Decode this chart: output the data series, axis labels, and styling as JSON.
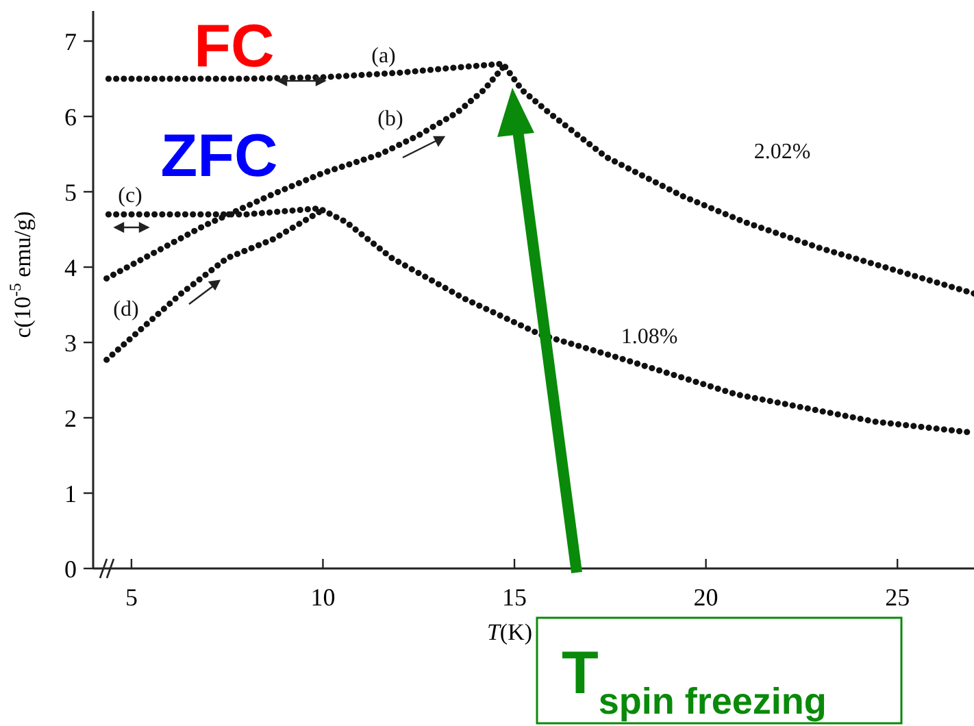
{
  "chart_data": {
    "type": "line",
    "xlabel": "T(K)",
    "ylabel": "c(10$^{-5}$ emu/g)",
    "xlim": [
      4,
      27
    ],
    "xticks": [
      5,
      10,
      15,
      20,
      25
    ],
    "ylim": [
      0,
      7.4
    ],
    "yticks": [
      0,
      1,
      2,
      3,
      4,
      5,
      6,
      7
    ],
    "grid": false,
    "line_style": "dotted",
    "marker": "none",
    "series": [
      {
        "color": "#111111",
        "x": [
          4.4,
          6,
          8,
          10,
          12,
          13.5,
          14.7,
          15.2,
          15.9,
          17.4,
          19.4,
          21,
          23,
          25,
          27
        ],
        "values": [
          6.5,
          6.5,
          6.5,
          6.52,
          6.58,
          6.65,
          6.7,
          6.35,
          6.05,
          5.46,
          4.94,
          4.6,
          4.25,
          3.95,
          3.65
        ]
      },
      {
        "color": "#111111",
        "x": [
          4.35,
          6.9,
          8.7,
          10,
          11.5,
          12.5,
          13.5,
          14.2,
          14.7
        ],
        "values": [
          3.85,
          4.55,
          4.97,
          5.25,
          5.5,
          5.75,
          6.05,
          6.35,
          6.65
        ]
      },
      {
        "color": "#111111",
        "x": [
          4.4,
          6,
          8,
          9.9,
          10.6,
          11.8,
          13.7,
          15.7,
          17.7,
          20.8,
          24.4,
          27
        ],
        "values": [
          4.7,
          4.7,
          4.7,
          4.78,
          4.6,
          4.12,
          3.58,
          3.1,
          2.8,
          2.31,
          1.95,
          1.8
        ]
      },
      {
        "color": "#111111",
        "x": [
          4.35,
          6.3,
          7.5,
          8.7,
          9.9
        ],
        "values": [
          2.77,
          3.65,
          4.12,
          4.37,
          4.73
        ]
      }
    ],
    "annotations": [
      "FC",
      "ZFC",
      "(a)",
      "(b)",
      "(c)",
      "(d)",
      "2.02%",
      "1.08%",
      "T$_{spin freezing}$"
    ]
  }
}
